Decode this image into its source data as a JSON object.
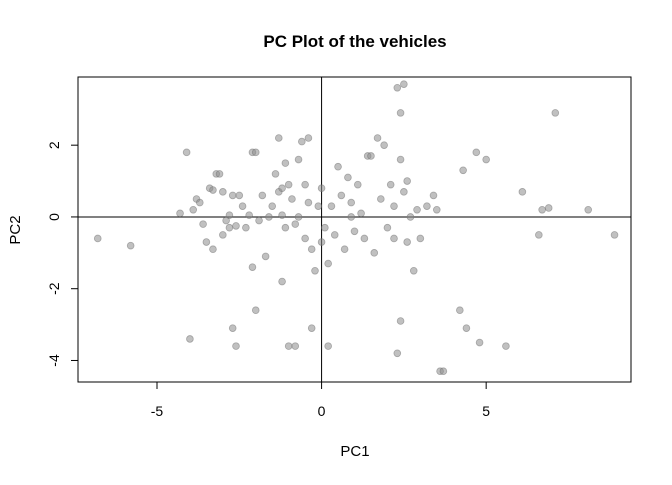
{
  "chart_data": {
    "type": "scatter",
    "title": "PC Plot of the vehicles",
    "xlabel": "PC1",
    "ylabel": "PC2",
    "xlim": [
      -7.4,
      9.4
    ],
    "ylim": [
      -4.6,
      3.9
    ],
    "xticks": [
      -5,
      0,
      5
    ],
    "yticks": [
      -4,
      -2,
      0,
      2
    ],
    "xtick_labels": [
      "-5",
      "0",
      "5"
    ],
    "ytick_labels": [
      "-4",
      "-2",
      "0",
      "2"
    ],
    "reference_lines": {
      "x": 0,
      "y": 0
    },
    "grid": false,
    "legend": "none",
    "point_color": "#8c8c8c",
    "point_opacity": 0.55,
    "points": [
      [
        -6.8,
        -0.6
      ],
      [
        -5.8,
        -0.8
      ],
      [
        -4.3,
        0.1
      ],
      [
        -4.1,
        1.8
      ],
      [
        -4.0,
        -3.4
      ],
      [
        -3.9,
        0.2
      ],
      [
        -3.8,
        0.5
      ],
      [
        -3.7,
        0.4
      ],
      [
        -3.6,
        -0.2
      ],
      [
        -3.4,
        0.8
      ],
      [
        -3.3,
        0.75
      ],
      [
        -3.2,
        1.2
      ],
      [
        -3.1,
        1.2
      ],
      [
        -3.0,
        0.7
      ],
      [
        -3.0,
        -0.5
      ],
      [
        -2.9,
        -0.1
      ],
      [
        -2.8,
        0.05
      ],
      [
        -2.8,
        -0.3
      ],
      [
        -2.7,
        0.6
      ],
      [
        -2.6,
        -3.6
      ],
      [
        -2.6,
        -0.25
      ],
      [
        -2.5,
        0.6
      ],
      [
        -2.4,
        0.3
      ],
      [
        -2.3,
        -0.3
      ],
      [
        -2.2,
        0.05
      ],
      [
        -2.1,
        -1.4
      ],
      [
        -2.1,
        1.8
      ],
      [
        -2.0,
        1.8
      ],
      [
        -2.0,
        -2.6
      ],
      [
        -1.9,
        -0.1
      ],
      [
        -1.8,
        0.6
      ],
      [
        -1.7,
        -1.1
      ],
      [
        -1.6,
        0.0
      ],
      [
        -1.5,
        0.3
      ],
      [
        -1.4,
        1.2
      ],
      [
        -1.3,
        0.7
      ],
      [
        -1.3,
        2.2
      ],
      [
        -1.2,
        0.05
      ],
      [
        -1.2,
        -1.8
      ],
      [
        -1.1,
        1.5
      ],
      [
        -1.1,
        -0.3
      ],
      [
        -1.0,
        0.9
      ],
      [
        -1.0,
        -3.6
      ],
      [
        -0.9,
        0.5
      ],
      [
        -0.8,
        -0.2
      ],
      [
        -0.8,
        -3.6
      ],
      [
        -0.7,
        0.0
      ],
      [
        -0.7,
        1.6
      ],
      [
        -0.6,
        2.1
      ],
      [
        -0.5,
        0.9
      ],
      [
        -0.5,
        -0.6
      ],
      [
        -0.4,
        2.2
      ],
      [
        -0.4,
        0.4
      ],
      [
        -0.3,
        -0.9
      ],
      [
        -0.3,
        -3.1
      ],
      [
        -0.2,
        -1.5
      ],
      [
        -0.1,
        0.3
      ],
      [
        0.0,
        0.8
      ],
      [
        0.0,
        -0.7
      ],
      [
        0.1,
        -0.3
      ],
      [
        0.2,
        -1.3
      ],
      [
        0.2,
        -3.6
      ],
      [
        0.3,
        0.3
      ],
      [
        0.4,
        -0.5
      ],
      [
        0.5,
        1.4
      ],
      [
        0.6,
        0.6
      ],
      [
        0.7,
        -0.9
      ],
      [
        0.8,
        1.1
      ],
      [
        0.9,
        0.0
      ],
      [
        1.0,
        -0.4
      ],
      [
        1.1,
        0.9
      ],
      [
        1.2,
        0.1
      ],
      [
        1.3,
        -0.6
      ],
      [
        1.4,
        1.7
      ],
      [
        1.5,
        1.7
      ],
      [
        1.6,
        -1.0
      ],
      [
        1.7,
        2.2
      ],
      [
        1.8,
        0.5
      ],
      [
        1.9,
        2.0
      ],
      [
        2.0,
        -0.3
      ],
      [
        2.1,
        0.9
      ],
      [
        2.2,
        -0.6
      ],
      [
        2.3,
        -3.8
      ],
      [
        2.3,
        3.6
      ],
      [
        2.4,
        -2.9
      ],
      [
        2.4,
        2.9
      ],
      [
        2.4,
        1.6
      ],
      [
        2.5,
        3.7
      ],
      [
        2.5,
        0.7
      ],
      [
        2.6,
        -0.7
      ],
      [
        2.7,
        0.0
      ],
      [
        2.8,
        -1.5
      ],
      [
        2.9,
        0.2
      ],
      [
        3.0,
        -0.6
      ],
      [
        3.2,
        0.3
      ],
      [
        3.4,
        0.6
      ],
      [
        3.5,
        0.2
      ],
      [
        3.6,
        -4.3
      ],
      [
        3.7,
        -4.3
      ],
      [
        4.2,
        -2.6
      ],
      [
        4.3,
        1.3
      ],
      [
        4.4,
        -3.1
      ],
      [
        4.7,
        1.8
      ],
      [
        4.8,
        -3.5
      ],
      [
        5.0,
        1.6
      ],
      [
        5.6,
        -3.6
      ],
      [
        6.1,
        0.7
      ],
      [
        6.6,
        -0.5
      ],
      [
        6.7,
        0.2
      ],
      [
        6.9,
        0.25
      ],
      [
        7.1,
        2.9
      ],
      [
        8.1,
        0.2
      ],
      [
        8.9,
        -0.5
      ],
      [
        -3.5,
        -0.7
      ],
      [
        -3.3,
        -0.9
      ],
      [
        -2.7,
        -3.1
      ],
      [
        -1.2,
        0.8
      ],
      [
        0.9,
        0.4
      ],
      [
        2.2,
        0.3
      ],
      [
        2.6,
        1.0
      ]
    ]
  }
}
